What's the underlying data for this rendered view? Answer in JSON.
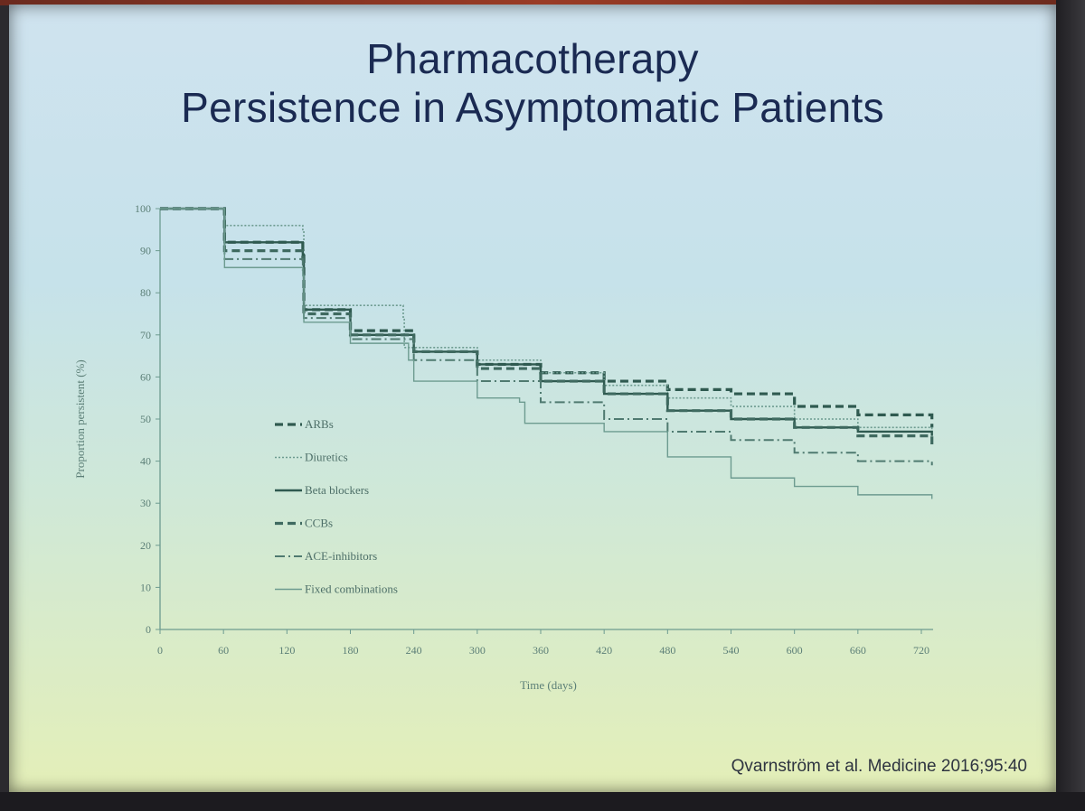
{
  "slide": {
    "title_line1": "Pharmacotherapy",
    "title_line2": "Persistence in Asymptomatic Patients",
    "citation": "Qvarnström et al. Medicine 2016;95:40"
  },
  "chart_data": {
    "type": "line",
    "step": true,
    "xlabel": "Time (days)",
    "ylabel": "Proportion persistent (%)",
    "xlim": [
      0,
      730
    ],
    "ylim": [
      0,
      100
    ],
    "xticks": [
      0,
      60,
      120,
      180,
      240,
      300,
      360,
      420,
      480,
      540,
      600,
      660,
      720
    ],
    "yticks": [
      0,
      10,
      20,
      30,
      40,
      50,
      60,
      70,
      80,
      90,
      100
    ],
    "legend_position": "lower-left inside",
    "grid": false,
    "series": [
      {
        "name": "ARBs",
        "style": "bold-dash",
        "color": "#2f5a50",
        "x": [
          0,
          60,
          61,
          135,
          136,
          180,
          240,
          300,
          360,
          420,
          480,
          540,
          600,
          660,
          730
        ],
        "y": [
          100,
          100,
          92,
          90,
          76,
          71,
          66,
          63,
          61,
          59,
          57,
          56,
          53,
          51,
          48
        ]
      },
      {
        "name": "Diuretics",
        "style": "dotted",
        "color": "#6d9b90",
        "x": [
          0,
          60,
          61,
          135,
          136,
          230,
          231,
          300,
          360,
          420,
          480,
          540,
          600,
          660,
          730
        ],
        "y": [
          100,
          100,
          96,
          95,
          77,
          74,
          67,
          64,
          61,
          58,
          55,
          53,
          50,
          48,
          46
        ]
      },
      {
        "name": "Beta blockers",
        "style": "solid",
        "color": "#2f5a50",
        "x": [
          0,
          60,
          61,
          135,
          136,
          180,
          240,
          300,
          360,
          420,
          480,
          540,
          600,
          660,
          730
        ],
        "y": [
          100,
          100,
          92,
          89,
          76,
          70,
          66,
          63,
          59,
          56,
          52,
          50,
          48,
          47,
          46
        ]
      },
      {
        "name": "CCBs",
        "style": "bold-dash",
        "color": "#3f6a60",
        "x": [
          0,
          60,
          61,
          135,
          136,
          180,
          240,
          300,
          360,
          420,
          480,
          540,
          600,
          660,
          730
        ],
        "y": [
          100,
          100,
          90,
          88,
          75,
          70,
          66,
          62,
          59,
          56,
          52,
          50,
          48,
          46,
          44
        ]
      },
      {
        "name": "ACE-inhibitors",
        "style": "dash-dot",
        "color": "#4f7a70",
        "x": [
          0,
          60,
          61,
          135,
          136,
          180,
          240,
          300,
          360,
          420,
          480,
          540,
          600,
          660,
          730
        ],
        "y": [
          100,
          100,
          88,
          85,
          74,
          69,
          64,
          59,
          54,
          50,
          47,
          45,
          42,
          40,
          39
        ]
      },
      {
        "name": "Fixed combinations",
        "style": "thin-solid",
        "color": "#6d9b90",
        "x": [
          0,
          60,
          61,
          135,
          136,
          180,
          235,
          240,
          300,
          340,
          345,
          420,
          480,
          540,
          600,
          660,
          730
        ],
        "y": [
          100,
          100,
          86,
          84,
          73,
          68,
          64,
          59,
          55,
          54,
          49,
          47,
          41,
          36,
          34,
          32,
          31
        ]
      }
    ]
  }
}
